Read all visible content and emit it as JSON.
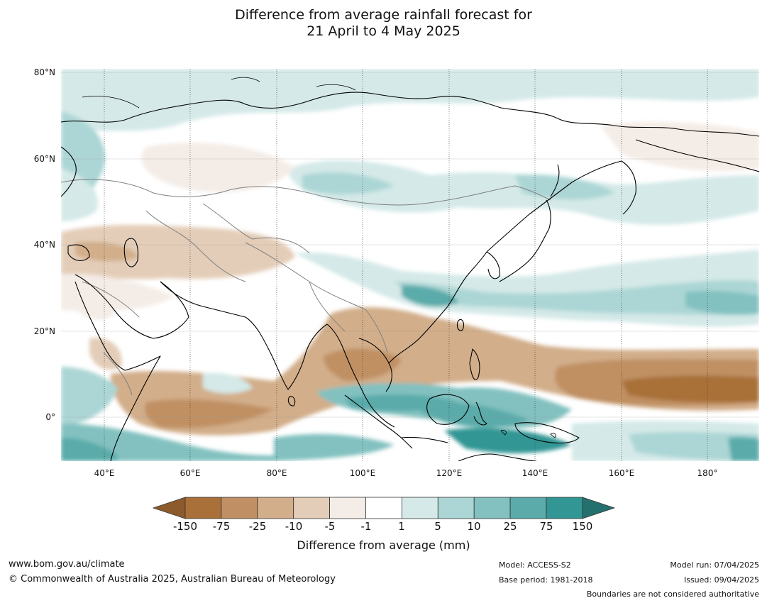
{
  "title": {
    "line1": "Difference from average rainfall forecast for",
    "line2": "21 April to 4 May 2025"
  },
  "map": {
    "lat_labels": [
      "80°N",
      "60°N",
      "40°N",
      "20°N",
      "0°"
    ],
    "lon_labels": [
      "40°E",
      "60°E",
      "80°E",
      "100°E",
      "120°E",
      "140°E",
      "160°E",
      "180°"
    ],
    "colors": {
      "ocean_bg": "#ffffff",
      "coast": "#000000",
      "borders": "#808080",
      "grid": "#9a9a9a"
    }
  },
  "legend": {
    "title": "Difference from average (mm)",
    "ticks": [
      "-150",
      "-75",
      "-25",
      "-10",
      "-5",
      "-1",
      "1",
      "5",
      "10",
      "25",
      "75",
      "150"
    ],
    "colors": [
      "#8c5a2b",
      "#a97039",
      "#c09064",
      "#d2ae8a",
      "#e3cdb8",
      "#f4ece6",
      "#ffffff",
      "#d4e9e8",
      "#acd6d5",
      "#82c1c0",
      "#5aabaa",
      "#319694",
      "#24706e"
    ]
  },
  "footer": {
    "url": "www.bom.gov.au/climate",
    "copyright": "© Commonwealth of Australia 2025, Australian Bureau of Meteorology",
    "model": "Model: ACCESS-S2",
    "base_period": "Base period: 1981-2018",
    "model_run": "Model run: 07/04/2025",
    "issued": "Issued: 09/04/2025",
    "boundaries": "Boundaries are not considered authoritative"
  }
}
